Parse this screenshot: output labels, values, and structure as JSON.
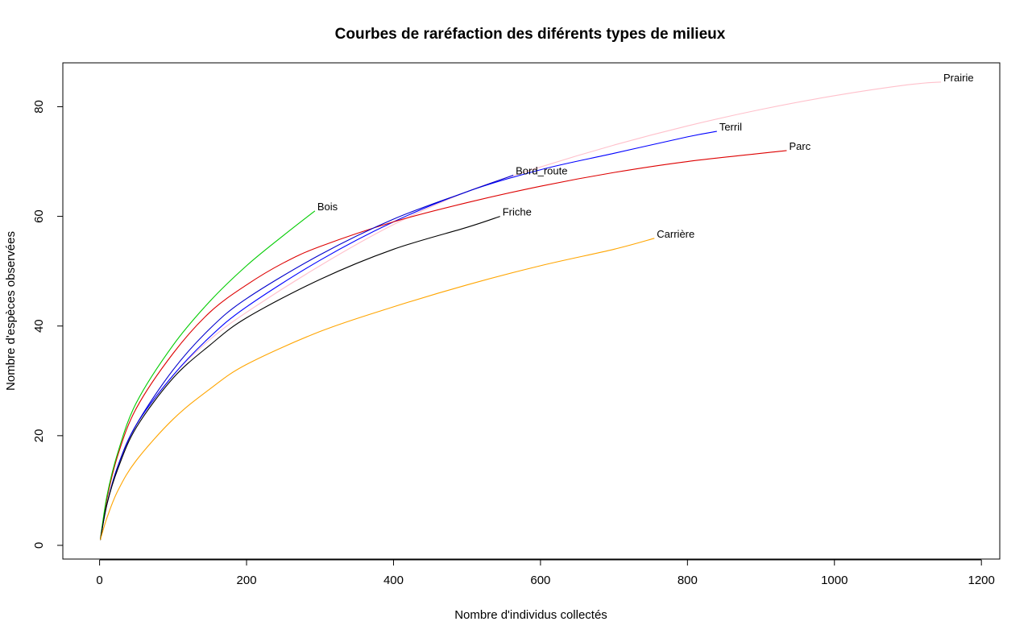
{
  "chart_data": {
    "type": "line",
    "title": "Courbes de raréfaction des diférents types de milieux",
    "xlabel": "Nombre d'individus collectés",
    "ylabel": "Nombre d'espèces observées",
    "xlim": [
      -50,
      1225
    ],
    "ylim": [
      -2.5,
      88
    ],
    "x_ticks": [
      0,
      200,
      400,
      600,
      800,
      1000,
      1200
    ],
    "y_ticks": [
      0,
      20,
      40,
      60,
      80
    ],
    "grid": false,
    "legend": "none",
    "series": [
      {
        "name": "Prairie",
        "color": "#FFC0CB",
        "x": [
          1,
          10,
          25,
          50,
          100,
          150,
          200,
          300,
          400,
          500,
          600,
          700,
          800,
          900,
          1000,
          1100,
          1145
        ],
        "y": [
          1,
          7.5,
          14.5,
          22,
          31,
          37.5,
          42.5,
          51,
          58.5,
          64.5,
          69,
          73,
          76.5,
          79.5,
          82,
          84,
          84.5
        ]
      },
      {
        "name": "Terril",
        "color": "#0000FF",
        "x": [
          1,
          10,
          25,
          50,
          100,
          150,
          200,
          300,
          400,
          500,
          600,
          700,
          800,
          840
        ],
        "y": [
          1,
          7.5,
          14.5,
          22,
          31,
          38,
          43.5,
          52,
          59,
          64.5,
          68.5,
          71.5,
          74.5,
          75.5
        ]
      },
      {
        "name": "Parc",
        "color": "#DD0000",
        "x": [
          1,
          10,
          25,
          50,
          100,
          150,
          200,
          250,
          300,
          400,
          500,
          600,
          700,
          800,
          935
        ],
        "y": [
          1,
          8.5,
          16.5,
          25,
          35,
          42.5,
          47.5,
          51.5,
          54.5,
          59,
          62.5,
          65.5,
          68,
          70,
          72
        ]
      },
      {
        "name": "Bord_route",
        "color": "#0000CC",
        "x": [
          1,
          10,
          25,
          50,
          100,
          150,
          200,
          300,
          400,
          500,
          563
        ],
        "y": [
          1,
          7.5,
          14.5,
          22,
          32,
          39.5,
          45,
          53,
          59.5,
          64.5,
          67.5
        ]
      },
      {
        "name": "Bois",
        "color": "#00CC00",
        "x": [
          1,
          10,
          25,
          50,
          100,
          150,
          200,
          250,
          293
        ],
        "y": [
          1,
          9,
          17,
          26,
          36.5,
          44.5,
          51,
          56.5,
          61
        ]
      },
      {
        "name": "Friche",
        "color": "#000000",
        "x": [
          1,
          10,
          25,
          50,
          100,
          150,
          200,
          300,
          400,
          500,
          545
        ],
        "y": [
          1,
          7.5,
          14,
          21.5,
          30.5,
          36.5,
          41.5,
          48.5,
          54,
          58,
          60
        ]
      },
      {
        "name": "Carrière",
        "color": "#FFA500",
        "x": [
          1,
          10,
          25,
          50,
          100,
          150,
          200,
          300,
          400,
          500,
          600,
          700,
          755
        ],
        "y": [
          1,
          5,
          10,
          15.5,
          23,
          28.5,
          33,
          39,
          43.5,
          47.5,
          51,
          54,
          56
        ]
      }
    ]
  }
}
